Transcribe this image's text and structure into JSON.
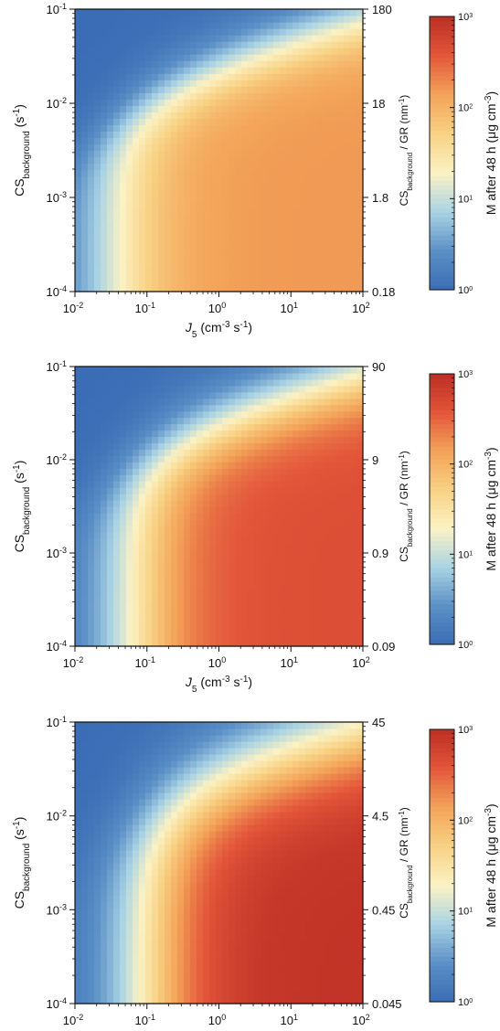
{
  "chart_data": [
    {
      "type": "heatmap",
      "xlabel": "J_5 (cm^-3 s^-1)",
      "ylabel": "CS_background (s^-1)",
      "y2label": "CS_background / GR (nm^-1)",
      "colorbar_label": "M after 48 h (μg cm^-3)",
      "x_scale": "log",
      "y_scale": "log",
      "color_scale": "log",
      "xlim": [
        0.01,
        100
      ],
      "ylim": [
        0.0001,
        0.1
      ],
      "clim": [
        1,
        1000
      ],
      "x_ticks": [
        -2,
        -1,
        0,
        1,
        2
      ],
      "y_ticks": [
        -4,
        -3,
        -2,
        -1
      ],
      "y2_ticks": [
        "0.18",
        "1.8",
        "18",
        "180"
      ],
      "c_ticks": [
        0,
        1,
        2,
        3
      ],
      "colormap": [
        "#3a6db5",
        "#5b8fc6",
        "#a9d3e4",
        "#fbf2c4",
        "#f8d284",
        "#f3a459",
        "#e3563a",
        "#bc2f24"
      ],
      "model": {
        "plateau_log10_M": 2.2,
        "cs_decay": 2.2,
        "j_onset": 1.5
      }
    },
    {
      "type": "heatmap",
      "xlabel": "J_5 (cm^-3 s^-1)",
      "ylabel": "CS_background (s^-1)",
      "y2label": "CS_background / GR (nm^-1)",
      "colorbar_label": "M after 48 h (μg cm^-3)",
      "x_scale": "log",
      "y_scale": "log",
      "color_scale": "log",
      "xlim": [
        0.01,
        100
      ],
      "ylim": [
        0.0001,
        0.1
      ],
      "clim": [
        1,
        1000
      ],
      "x_ticks": [
        -2,
        -1,
        0,
        1,
        2
      ],
      "y_ticks": [
        -4,
        -3,
        -2,
        -1
      ],
      "y2_ticks": [
        "0.09",
        "0.9",
        "9",
        "90"
      ],
      "c_ticks": [
        0,
        1,
        2,
        3
      ],
      "colormap": [
        "#3a6db5",
        "#5b8fc6",
        "#a9d3e4",
        "#fbf2c4",
        "#f8d284",
        "#f3a459",
        "#e3563a",
        "#bc2f24"
      ],
      "model": {
        "plateau_log10_M": 2.65,
        "cs_decay": 1.9,
        "j_onset": 1.2
      }
    },
    {
      "type": "heatmap",
      "xlabel": "J_5 (cm^-3 s^-1)",
      "ylabel": "CS_background (s^-1)",
      "y2label": "CS_background / GR (nm^-1)",
      "colorbar_label": "M after 48 h (μg cm^-3)",
      "x_scale": "log",
      "y_scale": "log",
      "color_scale": "log",
      "xlim": [
        0.01,
        100
      ],
      "ylim": [
        0.0001,
        0.1
      ],
      "clim": [
        1,
        1000
      ],
      "x_ticks": [
        -2,
        -1,
        0,
        1,
        2
      ],
      "y_ticks": [
        -4,
        -3,
        -2,
        -1
      ],
      "y2_ticks": [
        "0.045",
        "0.45",
        "4.5",
        "45"
      ],
      "c_ticks": [
        0,
        1,
        2,
        3
      ],
      "colormap": [
        "#3a6db5",
        "#5b8fc6",
        "#a9d3e4",
        "#fbf2c4",
        "#f8d284",
        "#f3a459",
        "#e3563a",
        "#bc2f24"
      ],
      "model": {
        "plateau_log10_M": 2.95,
        "cs_decay": 1.45,
        "j_onset": 1.0
      }
    }
  ]
}
